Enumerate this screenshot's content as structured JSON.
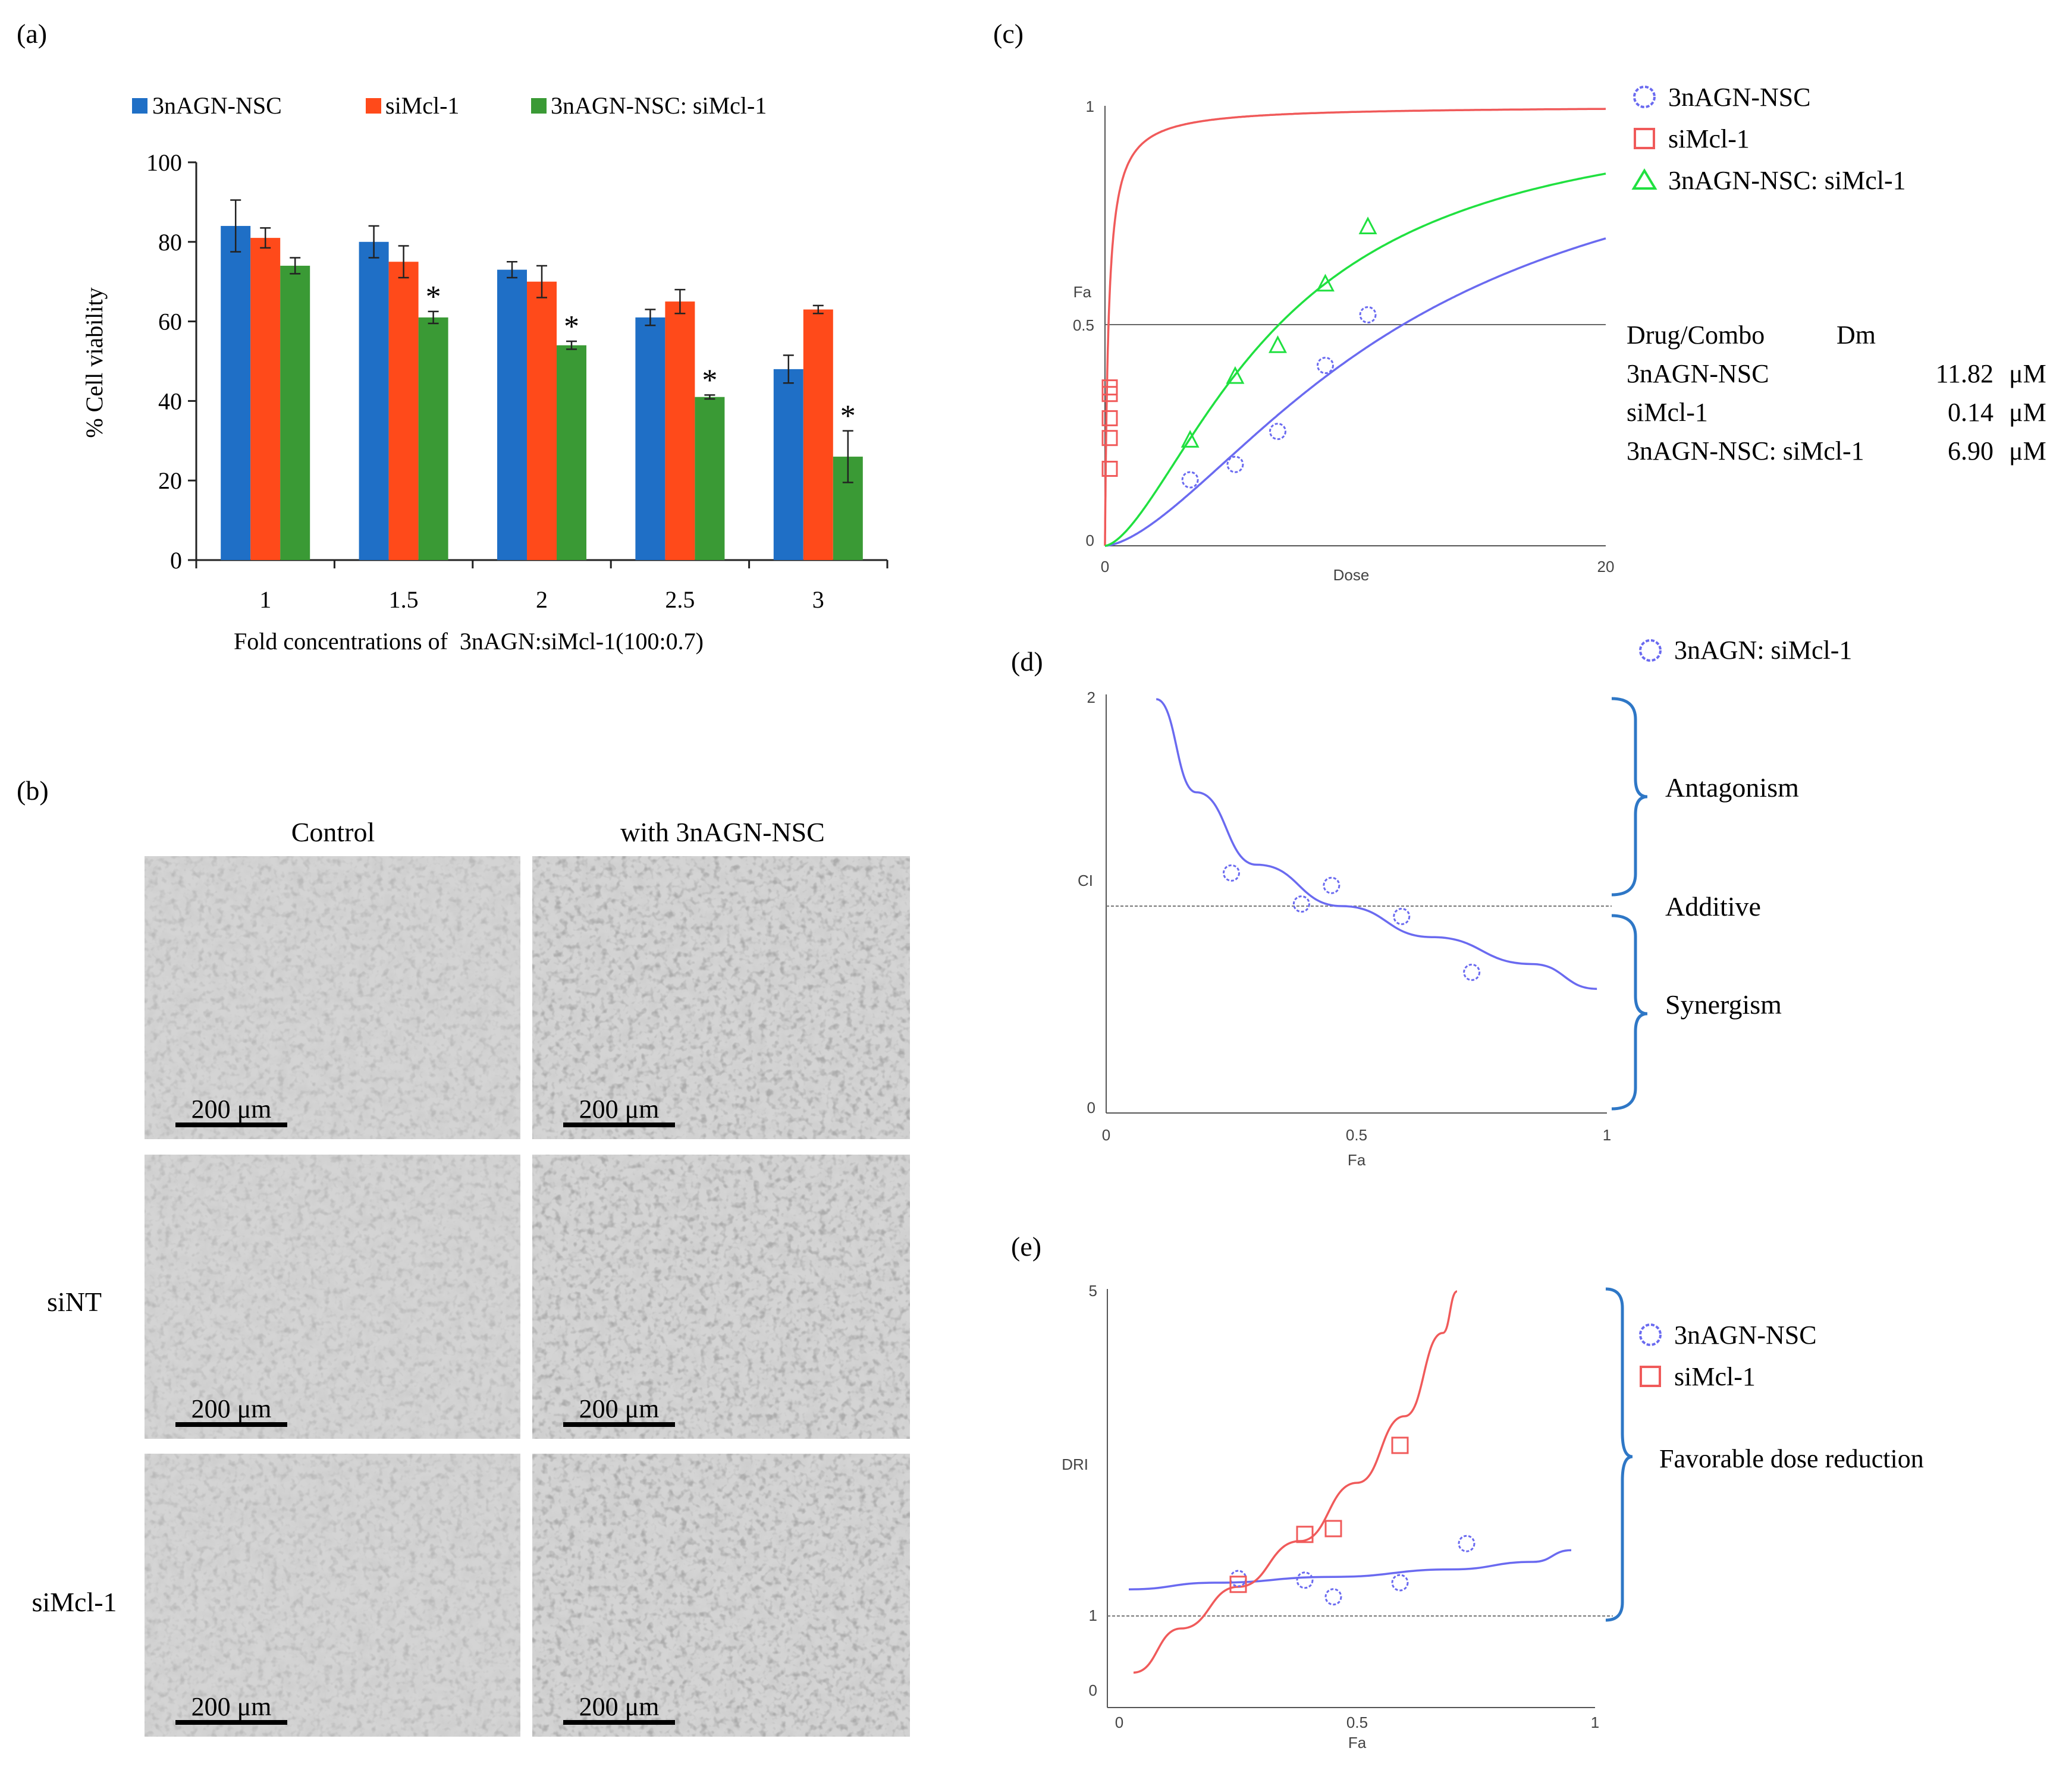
{
  "panels": {
    "a": "(a)",
    "b": "(b)",
    "c": "(c)",
    "d": "(d)",
    "e": "(e)"
  },
  "colors": {
    "blue": "#1F6FC6",
    "orange": "#FF4A1A",
    "green": "#3A9A35",
    "curve_blue": "#6A6AF0",
    "curve_red": "#F05A5A",
    "curve_green": "#20E040",
    "bracket": "#2E77C6"
  },
  "chart_data": [
    {
      "id": "a",
      "type": "bar",
      "xlabel": "Fold concentrations of  3nAGN:siMcl-1(100:0.7)",
      "ylabel": "% Cell viability",
      "ylim": [
        0,
        100
      ],
      "yticks": [
        "0",
        "20",
        "40",
        "60",
        "80",
        "100"
      ],
      "categories": [
        "1",
        "1.5",
        "2",
        "2.5",
        "3"
      ],
      "series": [
        {
          "name": "3nAGN-NSC",
          "values": [
            84,
            80,
            73,
            61,
            48
          ],
          "errors": [
            6.5,
            4,
            2,
            2,
            3.5
          ]
        },
        {
          "name": "siMcl-1",
          "values": [
            81,
            75,
            70,
            65,
            63
          ],
          "errors": [
            2.5,
            4,
            4,
            3,
            1
          ]
        },
        {
          "name": "3nAGN-NSC: siMcl-1",
          "values": [
            74,
            61,
            54,
            41,
            26
          ],
          "errors": [
            2,
            1.5,
            1,
            0.5,
            6.5
          ]
        }
      ],
      "significance": [
        "",
        "*",
        "*",
        "*",
        "*"
      ]
    },
    {
      "id": "c",
      "type": "line",
      "xlabel": "Dose",
      "ylabel": "Fa",
      "xlim": [
        0,
        20
      ],
      "ylim": [
        0,
        1
      ],
      "xticks": [
        "0",
        "20"
      ],
      "yticks": [
        "0",
        "0.5",
        "1"
      ],
      "series": [
        {
          "name": "3nAGN-NSC",
          "marker": "circle",
          "dm": 11.82,
          "m": 1.6,
          "points": [
            [
              3.4,
              0.15
            ],
            [
              5.2,
              0.185
            ],
            [
              6.9,
              0.26
            ],
            [
              8.8,
              0.41
            ],
            [
              10.5,
              0.525
            ]
          ]
        },
        {
          "name": "siMcl-1",
          "marker": "square",
          "dm": 0.14,
          "m": 1.0,
          "points": [
            [
              0,
              0.36
            ],
            [
              0,
              0.345
            ],
            [
              0,
              0.29
            ],
            [
              0,
              0.245
            ],
            [
              0,
              0.175
            ]
          ]
        },
        {
          "name": "3nAGN-NSC: siMcl-1",
          "marker": "triangle",
          "dm": 6.9,
          "m": 1.6,
          "points": [
            [
              3.4,
              0.24
            ],
            [
              5.2,
              0.385
            ],
            [
              6.9,
              0.455
            ],
            [
              8.8,
              0.595
            ],
            [
              10.5,
              0.725
            ]
          ]
        }
      ],
      "table": {
        "header_drug": "Drug/Combo",
        "header_dm": "Dm",
        "rows": [
          {
            "name": "3nAGN-NSC",
            "value": "11.82",
            "unit": "μM"
          },
          {
            "name": "siMcl-1",
            "value": "0.14",
            "unit": "μM"
          },
          {
            "name": "3nAGN-NSC: siMcl-1",
            "value": "6.90",
            "unit": "μM"
          }
        ]
      }
    },
    {
      "id": "d",
      "type": "line",
      "xlabel": "Fa",
      "ylabel": "CI",
      "xlim": [
        0,
        1
      ],
      "ylim": [
        0,
        2
      ],
      "xticks": [
        "0",
        "0.5",
        "1"
      ],
      "yticks": [
        "0",
        "2"
      ],
      "reference_line": 1,
      "legend": "3nAGN: siMcl-1",
      "points": [
        [
          0.25,
          1.16
        ],
        [
          0.39,
          1.01
        ],
        [
          0.45,
          1.1
        ],
        [
          0.59,
          0.95
        ],
        [
          0.73,
          0.68
        ]
      ],
      "curve": [
        [
          0.1,
          2.0
        ],
        [
          0.18,
          1.55
        ],
        [
          0.3,
          1.2
        ],
        [
          0.47,
          1.0
        ],
        [
          0.65,
          0.85
        ],
        [
          0.85,
          0.72
        ],
        [
          0.98,
          0.6
        ]
      ],
      "annotations": [
        "Antagonism",
        "Additive",
        "Synergism"
      ]
    },
    {
      "id": "e",
      "type": "line",
      "xlabel": "Fa",
      "ylabel": "DRI",
      "xlim": [
        0,
        1
      ],
      "ylim": [
        0,
        5
      ],
      "xticks": [
        "0",
        "0.5",
        "1"
      ],
      "yticks": [
        "0",
        "1",
        "5"
      ],
      "reference_line": 1,
      "series": [
        {
          "name": "3nAGN-NSC",
          "marker": "circle",
          "points": [
            [
              0.25,
              1.55
            ],
            [
              0.39,
              1.53
            ],
            [
              0.45,
              1.33
            ],
            [
              0.59,
              1.5
            ],
            [
              0.73,
              1.97
            ]
          ],
          "curve": [
            [
              0.02,
              1.42
            ],
            [
              0.2,
              1.5
            ],
            [
              0.45,
              1.57
            ],
            [
              0.7,
              1.66
            ],
            [
              0.87,
              1.75
            ],
            [
              0.95,
              1.89
            ]
          ]
        },
        {
          "name": "siMcl-1",
          "marker": "square",
          "points": [
            [
              0.25,
              1.48
            ],
            [
              0.39,
              2.08
            ],
            [
              0.45,
              2.15
            ],
            [
              0.59,
              3.15
            ]
          ],
          "curve": [
            [
              0.03,
              0.42
            ],
            [
              0.13,
              0.95
            ],
            [
              0.25,
              1.45
            ],
            [
              0.38,
              2.0
            ],
            [
              0.5,
              2.7
            ],
            [
              0.6,
              3.5
            ],
            [
              0.68,
              4.5
            ],
            [
              0.71,
              5.0
            ]
          ]
        }
      ],
      "annotation": "Favorable dose reduction"
    }
  ],
  "panel_b": {
    "col_headers": [
      "Control",
      "with 3nAGN-NSC"
    ],
    "row_labels": [
      "",
      "siNT",
      "siMcl-1"
    ],
    "scale_label": "200 μm"
  }
}
